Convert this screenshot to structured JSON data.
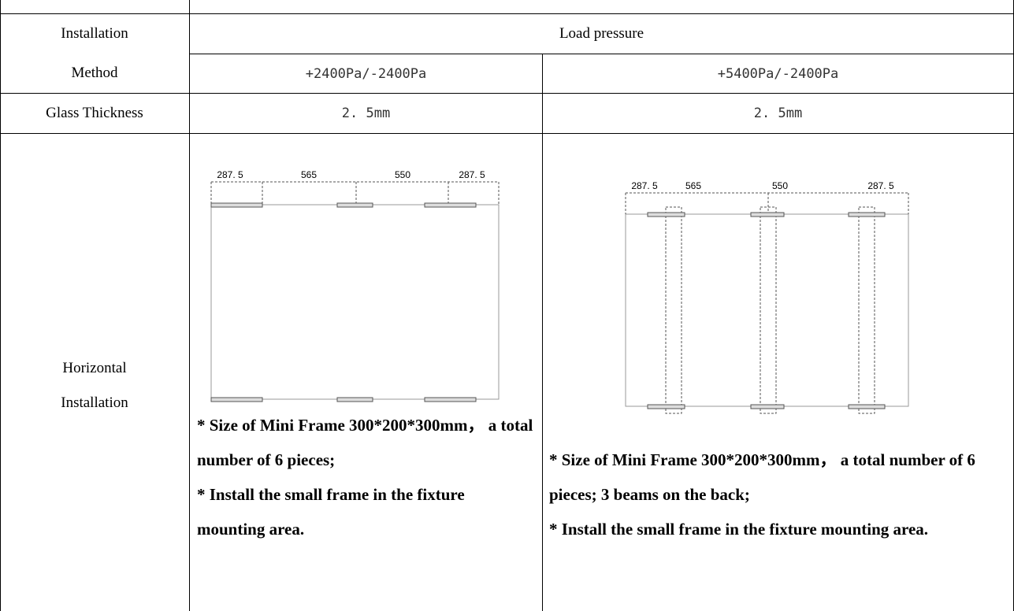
{
  "table": {
    "header": {
      "col0": "Installation Method",
      "group": "Load pressure",
      "col1": "+2400Pa/-2400Pa",
      "col2": "+5400Pa/-2400Pa"
    },
    "rows": [
      [
        "Glass Thickness",
        "2. 5mm",
        "2. 5mm"
      ],
      [
        "Horizontal Installation",
        {
          "dims": [
            "287. 5",
            "565",
            "550",
            "287. 5"
          ],
          "notes": [
            "* Size of Mini Frame 300*200*300mm， a total number of 6 pieces;",
            "* Install the small frame in the fixture mounting area."
          ]
        },
        {
          "dims": [
            "287. 5",
            "565",
            "550",
            "287. 5"
          ],
          "notes": [
            "* Size of Mini Frame 300*200*300mm， a total number of 6 pieces; 3 beams on the back;",
            "* Install the small frame in the fixture mounting area."
          ]
        }
      ]
    ]
  }
}
